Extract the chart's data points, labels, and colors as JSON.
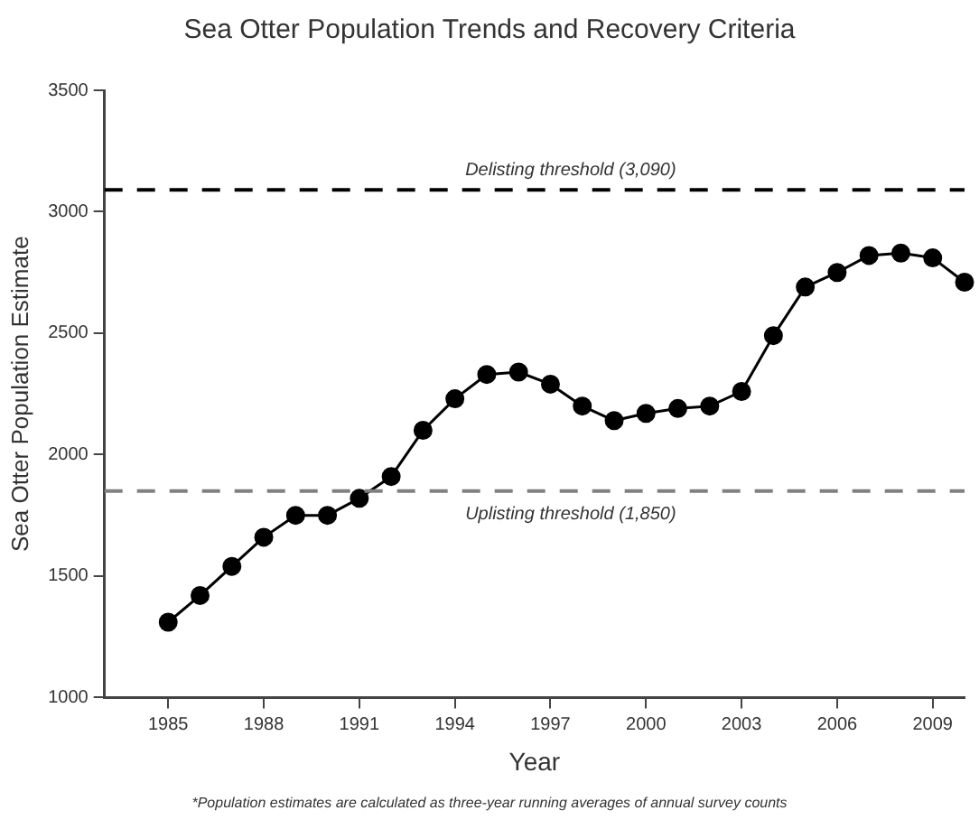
{
  "chart_data": {
    "type": "line",
    "title": "Sea Otter Population Trends and Recovery Criteria",
    "xlabel": "Year",
    "ylabel": "Sea Otter Population Estimate",
    "x": [
      1985,
      1986,
      1987,
      1988,
      1989,
      1990,
      1991,
      1992,
      1993,
      1994,
      1995,
      1996,
      1997,
      1998,
      1999,
      2000,
      2001,
      2002,
      2003,
      2004,
      2005,
      2006,
      2007,
      2008,
      2009,
      2010
    ],
    "series": [
      {
        "color": "#000000",
        "values": [
          1310,
          1420,
          1540,
          1660,
          1750,
          1750,
          1820,
          1910,
          2100,
          2230,
          2330,
          2340,
          2290,
          2200,
          2140,
          2170,
          2190,
          2200,
          2260,
          2490,
          2690,
          2750,
          2820,
          2830,
          2810,
          2710
        ]
      }
    ],
    "xlim": [
      1983,
      2010
    ],
    "xticks": [
      1985,
      1988,
      1991,
      1994,
      1997,
      2000,
      2003,
      2006,
      2009
    ],
    "ylim": [
      1000,
      3500
    ],
    "yticks": [
      1000,
      1500,
      2000,
      2500,
      3000,
      3500
    ],
    "ref_lines": [
      {
        "axis": "y",
        "value": 3090,
        "label": "Delisting threshold (3,090)",
        "color": "#000000",
        "line_style": "dashed"
      },
      {
        "axis": "y",
        "value": 1850,
        "label": "Uplisting threshold (1,850)",
        "color": "#808080",
        "line_style": "dashed"
      }
    ],
    "annotations": [
      "*Population estimates are calculated as three-year running averages of annual survey counts"
    ],
    "grid": false,
    "legend": false,
    "marker": "circle",
    "line_style": "solid"
  }
}
